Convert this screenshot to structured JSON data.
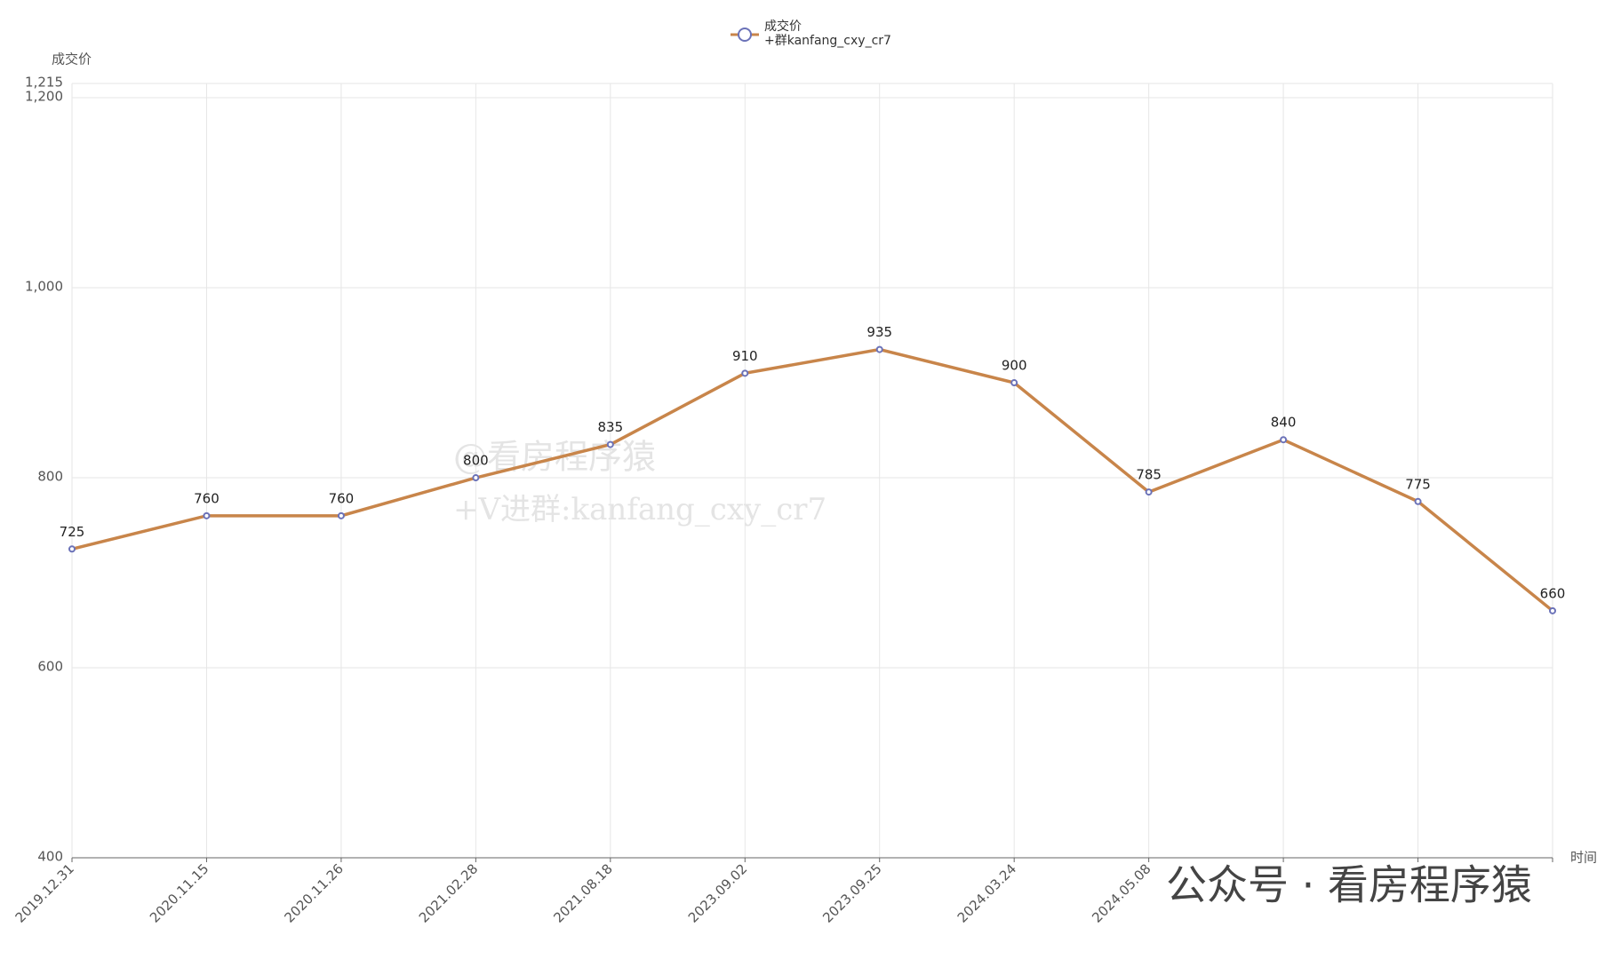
{
  "chart_data": {
    "type": "line",
    "y_axis_label": "成交价",
    "x_axis_label": "时间",
    "categories": [
      "2019.12.31",
      "2020.11.15",
      "2020.11.26",
      "2021.02.28",
      "2021.08.18",
      "2023.09.02",
      "2023.09.25",
      "2024.03.24",
      "2024.05.08",
      null,
      null,
      null
    ],
    "series": [
      {
        "name": "成交价\n+群kanfang_cxy_cr7",
        "color": "#c8854a",
        "marker_color": "#6b72b8",
        "values": [
          725,
          760,
          760,
          800,
          835,
          910,
          935,
          900,
          785,
          840,
          775,
          660
        ]
      }
    ],
    "ylim": [
      400,
      1215
    ],
    "yticks": [
      400,
      600,
      800,
      {
        "value": 1000,
        "label": "1,000"
      },
      {
        "value": 1200,
        "label": "1,200"
      },
      {
        "value": 1215,
        "label": "1,215"
      }
    ],
    "grid": true
  },
  "watermarks": [
    "@看房程序猿",
    "+V进群:kanfang_cxy_cr7",
    "公众号 · 看房程序猿"
  ]
}
